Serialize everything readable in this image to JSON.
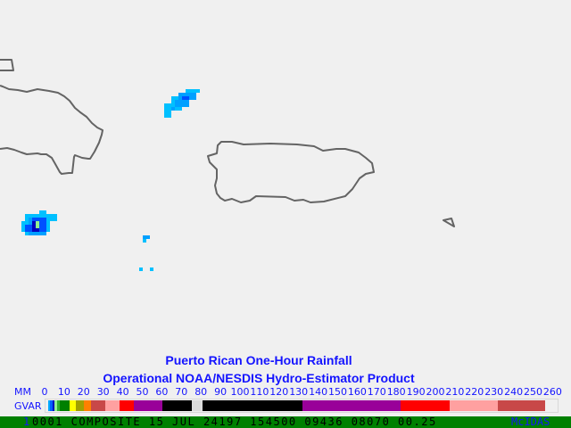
{
  "title_line1": "Puerto Rican One-Hour Rainfall",
  "title_line2": "Operational NOAA/NESDIS  Hydro-Estimator Product",
  "scale": {
    "unit_label": "MM",
    "source_label": "GVAR",
    "ticks": [
      "0",
      "10",
      "20",
      "30",
      "40",
      "50",
      "60",
      "70",
      "80",
      "90",
      "100",
      "110",
      "120",
      "130",
      "140",
      "150",
      "160",
      "170",
      "180",
      "190",
      "200",
      "210",
      "220",
      "230",
      "240",
      "250",
      "260"
    ],
    "colors": [
      "#00aaff",
      "#0060ff",
      "#0000c0",
      "#90f090",
      "#30b030",
      "#008000",
      "#ffff00",
      "#a0a000",
      "#ff8000",
      "#c84848",
      "#ffa0a0",
      "#ff0000",
      "#990099",
      "#000000",
      "#dcdcdc",
      "#000000",
      "#990099",
      "#ff0000",
      "#ffa0a0",
      "#c84848"
    ]
  },
  "status_bar": {
    "frame_number": "1",
    "text": "0001 COMPOSITE     15 JUL 24197 154500 09436 08070 00.25",
    "brand": "McIDAS",
    "background": "#008000"
  },
  "map": {
    "coastline_color": "#646464",
    "rain_colors": {
      "light": "#00c0ff",
      "medium": "#00a0ff",
      "heavy": "#0050ff",
      "very_heavy": "#0000c0",
      "extreme": "#90f090"
    }
  }
}
